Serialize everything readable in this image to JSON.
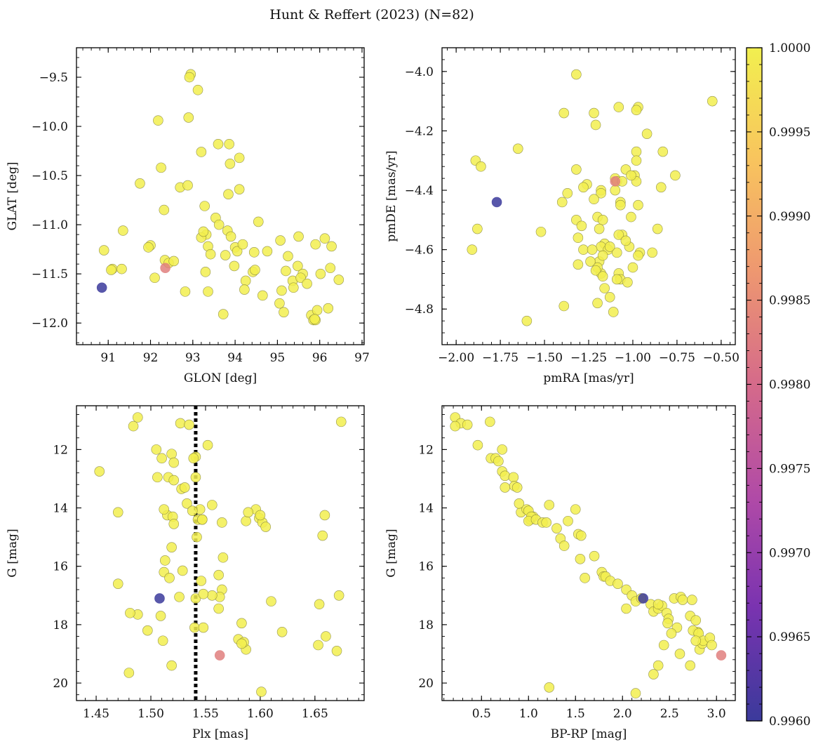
{
  "figure_title": "Hunt & Reffert (2023) (N=82)",
  "colorbar": {
    "min": 0.996,
    "max": 1.0,
    "ticks": [
      "0.9960",
      "0.9965",
      "0.9970",
      "0.9975",
      "0.9980",
      "0.9985",
      "0.9990",
      "0.9995",
      "1.0000"
    ],
    "tick_values": [
      0.996,
      0.9965,
      0.997,
      0.9975,
      0.998,
      0.9985,
      0.999,
      0.9995,
      1.0
    ],
    "colormap": "plasma",
    "colors": [
      "#3b3a9b",
      "#7a33b0",
      "#b04aa7",
      "#d56a8a",
      "#ee9870",
      "#f8c35e",
      "#f2ef4f"
    ]
  },
  "marker": {
    "face_alpha": 0.85,
    "edge_color": "#7a7a3a",
    "radius_hint": "medium"
  },
  "chart_data": [
    {
      "type": "scatter",
      "id": "glon-glat",
      "xlabel": "GLON [deg]",
      "ylabel": "GLAT [deg]",
      "xlim": [
        90.25,
        97.05
      ],
      "ylim": [
        -12.22,
        -9.2
      ],
      "xticks": [
        91,
        92,
        93,
        94,
        95,
        96,
        97
      ],
      "xtick_labels": [
        "91",
        "92",
        "93",
        "94",
        "95",
        "96",
        "97"
      ],
      "yticks": [
        -9.5,
        -10.0,
        -10.5,
        -11.0,
        -11.5,
        -12.0
      ],
      "ytick_labels": [
        "−9.5",
        "−10.0",
        "−10.5",
        "−11.0",
        "−11.5",
        "−12.0"
      ],
      "x": [
        92.95,
        92.92,
        93.12,
        92.9,
        92.18,
        93.2,
        93.6,
        93.86,
        93.88,
        94.1,
        93.84,
        92.25,
        91.75,
        92.32,
        92.7,
        92.88,
        93.28,
        93.54,
        94.1,
        93.82,
        93.9,
        94.55,
        93.32,
        93.2,
        91.35,
        93.36,
        94,
        95.07,
        95.5,
        95.9,
        96.12,
        96.28,
        92,
        91.95,
        93.42,
        94.05,
        94.76,
        93.77,
        94.45,
        94.42,
        93.98,
        90.9,
        91.1,
        91.07,
        91.32,
        92.34,
        95.2,
        95.48,
        95.6,
        94.25,
        93.3,
        92.1,
        95.36,
        95.55,
        94.22,
        95.1,
        96.25,
        96.45,
        92.82,
        93.36,
        95.38,
        94.65,
        93.72,
        95.15,
        95.8,
        96.2,
        95.94,
        95.85,
        95.9,
        95.88,
        92.43,
        92.55,
        94.47,
        93.25,
        94.18,
        95.25,
        95.7,
        96.02,
        93.62,
        95.05,
        90.85,
        92.35
      ],
      "y": [
        -9.47,
        -9.5,
        -9.63,
        -9.91,
        -9.94,
        -10.26,
        -10.18,
        -10.18,
        -10.38,
        -10.32,
        -10.69,
        -10.42,
        -10.58,
        -10.85,
        -10.62,
        -10.6,
        -10.81,
        -10.93,
        -10.64,
        -11.06,
        -11.12,
        -10.97,
        -11.1,
        -11.13,
        -11.06,
        -11.22,
        -11.23,
        -11.16,
        -11.12,
        -11.2,
        -11.14,
        -11.22,
        -11.21,
        -11.23,
        -11.3,
        -11.27,
        -11.27,
        -11.31,
        -11.28,
        -11.48,
        -11.42,
        -11.26,
        -11.45,
        -11.46,
        -11.45,
        -11.36,
        -11.47,
        -11.42,
        -11.5,
        -11.57,
        -11.48,
        -11.54,
        -11.57,
        -11.54,
        -11.66,
        -11.67,
        -11.44,
        -11.56,
        -11.68,
        -11.68,
        -11.64,
        -11.72,
        -11.91,
        -11.89,
        -11.92,
        -11.85,
        -11.87,
        -11.97,
        -11.97,
        -11.96,
        -11.39,
        -11.37,
        -11.46,
        -11.07,
        -11.2,
        -11.32,
        -11.6,
        -11.5,
        -11.0,
        -11.8,
        -11.64,
        -11.44
      ],
      "color_values": [
        1,
        1,
        1,
        1,
        1,
        1,
        1,
        1,
        1,
        1,
        1,
        1,
        1,
        1,
        1,
        1,
        1,
        1,
        1,
        1,
        1,
        1,
        1,
        1,
        1,
        1,
        1,
        1,
        1,
        1,
        1,
        1,
        1,
        1,
        1,
        1,
        1,
        1,
        1,
        1,
        1,
        1,
        1,
        1,
        1,
        1,
        1,
        1,
        1,
        1,
        1,
        1,
        1,
        1,
        1,
        1,
        1,
        1,
        1,
        1,
        1,
        1,
        1,
        1,
        1,
        1,
        1,
        1,
        1,
        1,
        1,
        1,
        1,
        1,
        1,
        1,
        1,
        1,
        1,
        1,
        0.996,
        0.9983
      ]
    },
    {
      "type": "scatter",
      "id": "pmra-pmde",
      "xlabel": "pmRA [mas/yr]",
      "ylabel": "pmDE [mas/yr]",
      "xlim": [
        -2.08,
        -0.42
      ],
      "ylim": [
        -4.92,
        -3.92
      ],
      "xticks": [
        -2.0,
        -1.75,
        -1.5,
        -1.25,
        -1.0,
        -0.75,
        -0.5
      ],
      "xtick_labels": [
        "−2.00",
        "−1.75",
        "−1.50",
        "−1.25",
        "−1.00",
        "−0.75",
        "−0.50"
      ],
      "yticks": [
        -4.0,
        -4.2,
        -4.4,
        -4.6,
        -4.8
      ],
      "ytick_labels": [
        "−4.0",
        "−4.2",
        "−4.4",
        "−4.6",
        "−4.8"
      ],
      "x": [
        -1.32,
        -0.55,
        -0.97,
        -1.08,
        -1.39,
        -0.98,
        -1.22,
        -0.92,
        -1.21,
        -1.65,
        -0.83,
        -0.98,
        -1.89,
        -1.86,
        -0.98,
        -1.04,
        -0.99,
        -1.32,
        -0.76,
        -1.1,
        -1.26,
        -1.09,
        -0.84,
        -0.98,
        -1.18,
        -1.37,
        -1.18,
        -1.1,
        -1.01,
        -1.06,
        -0.97,
        -1.88,
        -1.52,
        -1.2,
        -1.07,
        -1.28,
        -1.22,
        -1.32,
        -1.17,
        -1.4,
        -1.06,
        -1.19,
        -0.86,
        -1.01,
        -1.08,
        -1.31,
        -1.29,
        -1.28,
        -1.16,
        -0.89,
        -1.18,
        -1.07,
        -1.31,
        -1.19,
        -1.14,
        -1.91,
        -1.17,
        -1.18,
        -1.09,
        -1.02,
        -1.04,
        -1.13,
        -0.96,
        -1.23,
        -1.2,
        -1.21,
        -1.17,
        -1.08,
        -1.07,
        -1.03,
        -1.0,
        -1.16,
        -1.24,
        -0.97,
        -1.13,
        -1.11,
        -1.2,
        -1.39,
        -1.09,
        -1.6,
        -1.77,
        -1.1
      ],
      "y": [
        -4.01,
        -4.1,
        -4.12,
        -4.12,
        -4.14,
        -4.13,
        -4.14,
        -4.21,
        -4.18,
        -4.26,
        -4.27,
        -4.27,
        -4.3,
        -4.32,
        -4.3,
        -4.33,
        -4.35,
        -4.33,
        -4.35,
        -4.36,
        -4.38,
        -4.37,
        -4.39,
        -4.37,
        -4.4,
        -4.41,
        -4.41,
        -4.4,
        -4.35,
        -4.37,
        -4.45,
        -4.53,
        -4.54,
        -4.49,
        -4.44,
        -4.39,
        -4.43,
        -4.5,
        -4.5,
        -4.44,
        -4.55,
        -4.53,
        -4.53,
        -4.49,
        -4.55,
        -4.56,
        -4.52,
        -4.6,
        -4.58,
        -4.61,
        -4.59,
        -4.45,
        -4.65,
        -4.64,
        -4.6,
        -4.6,
        -4.62,
        -4.68,
        -4.61,
        -4.59,
        -4.57,
        -4.59,
        -4.61,
        -4.6,
        -4.66,
        -4.67,
        -4.69,
        -4.68,
        -4.7,
        -4.71,
        -4.66,
        -4.73,
        -4.64,
        -4.62,
        -4.76,
        -4.81,
        -4.78,
        -4.79,
        -4.7,
        -4.84,
        -4.44,
        -4.37
      ],
      "color_values": [
        1,
        1,
        1,
        1,
        1,
        1,
        1,
        1,
        1,
        1,
        1,
        1,
        1,
        1,
        1,
        1,
        1,
        1,
        1,
        1,
        1,
        1,
        1,
        1,
        1,
        1,
        1,
        1,
        1,
        1,
        1,
        1,
        1,
        1,
        1,
        1,
        1,
        1,
        1,
        1,
        1,
        1,
        1,
        1,
        1,
        1,
        1,
        1,
        1,
        1,
        1,
        1,
        1,
        1,
        1,
        1,
        1,
        1,
        1,
        1,
        1,
        1,
        1,
        1,
        1,
        1,
        1,
        1,
        1,
        1,
        1,
        1,
        1,
        1,
        1,
        1,
        1,
        1,
        1,
        1,
        0.996,
        0.9983
      ]
    },
    {
      "type": "scatter",
      "id": "plx-g",
      "xlabel": "Plx [mas]",
      "ylabel": "G [mag]",
      "xlim": [
        1.432,
        1.695
      ],
      "ylim": [
        20.6,
        10.5
      ],
      "invert_y": true,
      "xticks": [
        1.45,
        1.5,
        1.55,
        1.6,
        1.65
      ],
      "xtick_labels": [
        "1.45",
        "1.50",
        "1.55",
        "1.60",
        "1.65"
      ],
      "yticks": [
        12,
        14,
        16,
        18,
        20
      ],
      "ytick_labels": [
        "12",
        "14",
        "16",
        "18",
        "20"
      ],
      "vline": {
        "x": 1.541,
        "style": "dotted",
        "color": "#000000"
      },
      "x": [
        1.488,
        1.484,
        1.674,
        1.527,
        1.535,
        1.505,
        1.519,
        1.541,
        1.552,
        1.453,
        1.506,
        1.521,
        1.528,
        1.531,
        1.541,
        1.539,
        1.51,
        1.516,
        1.521,
        1.47,
        1.533,
        1.545,
        1.556,
        1.596,
        1.543,
        1.547,
        1.587,
        1.599,
        1.602,
        1.659,
        1.565,
        1.589,
        1.6,
        1.605,
        1.566,
        1.513,
        1.515,
        1.52,
        1.538,
        1.547,
        1.562,
        1.542,
        1.512,
        1.521,
        1.657,
        1.512,
        1.546,
        1.565,
        1.672,
        1.47,
        1.519,
        1.509,
        1.529,
        1.563,
        1.517,
        1.488,
        1.556,
        1.654,
        1.541,
        1.66,
        1.548,
        1.562,
        1.58,
        1.583,
        1.481,
        1.497,
        1.54,
        1.587,
        1.62,
        1.511,
        1.585,
        1.653,
        1.583,
        1.67,
        1.61,
        1.526,
        1.548,
        1.519,
        1.601,
        1.48,
        1.508,
        1.563
      ],
      "y": [
        10.9,
        11.2,
        11.05,
        11.1,
        11.15,
        12.0,
        12.15,
        12.25,
        11.85,
        12.75,
        12.95,
        12.45,
        13.35,
        13.3,
        12.95,
        12.3,
        12.3,
        12.95,
        13.05,
        14.15,
        13.85,
        14.05,
        13.9,
        14.05,
        14.4,
        14.4,
        14.45,
        14.35,
        14.5,
        14.25,
        14.5,
        14.15,
        14.25,
        14.65,
        15.7,
        15.8,
        14.25,
        14.3,
        14.1,
        14.4,
        16.3,
        15.0,
        14.05,
        14.55,
        14.95,
        16.2,
        16.5,
        16.8,
        17.0,
        16.6,
        15.35,
        17.7,
        16.15,
        17.05,
        16.4,
        17.65,
        17.0,
        17.3,
        17.1,
        18.4,
        16.95,
        17.45,
        18.5,
        17.95,
        17.6,
        18.2,
        18.1,
        18.85,
        18.25,
        18.55,
        18.6,
        18.7,
        18.65,
        18.9,
        17.2,
        17.05,
        18.1,
        19.4,
        20.3,
        19.65,
        17.1,
        19.05
      ],
      "color_values": [
        1,
        1,
        1,
        1,
        1,
        1,
        1,
        1,
        1,
        1,
        1,
        1,
        1,
        1,
        1,
        1,
        1,
        1,
        1,
        1,
        1,
        1,
        1,
        1,
        1,
        1,
        1,
        1,
        1,
        1,
        1,
        1,
        1,
        1,
        1,
        1,
        1,
        1,
        1,
        1,
        1,
        1,
        1,
        1,
        1,
        1,
        1,
        1,
        1,
        1,
        1,
        1,
        1,
        1,
        1,
        1,
        1,
        1,
        1,
        1,
        1,
        1,
        1,
        1,
        1,
        1,
        1,
        1,
        1,
        1,
        1,
        1,
        1,
        1,
        1,
        1,
        1,
        1,
        1,
        1,
        0.996,
        0.9983
      ]
    },
    {
      "type": "scatter",
      "id": "bprp-g",
      "xlabel": "BP-RP [mag]",
      "ylabel": "G [mag]",
      "xlim": [
        0.08,
        3.2
      ],
      "ylim": [
        20.6,
        10.5
      ],
      "invert_y": true,
      "xticks": [
        0.5,
        1.0,
        1.5,
        2.0,
        2.5,
        3.0
      ],
      "xtick_labels": [
        "0.5",
        "1.0",
        "1.5",
        "2.0",
        "2.5",
        "3.0"
      ],
      "yticks": [
        12,
        14,
        16,
        18,
        20
      ],
      "ytick_labels": [
        "12",
        "14",
        "16",
        "18",
        "20"
      ],
      "x": [
        0.22,
        0.28,
        0.35,
        0.22,
        0.59,
        0.46,
        0.6,
        0.65,
        0.72,
        0.68,
        0.72,
        0.75,
        0.75,
        0.84,
        0.85,
        0.88,
        0.92,
        0.9,
        0.98,
        1.0,
        1.02,
        1.05,
        1.03,
        1.0,
        1.08,
        1.15,
        1.19,
        1.22,
        1.3,
        1.34,
        1.38,
        1.5,
        1.42,
        1.55,
        1.53,
        1.56,
        1.6,
        1.7,
        1.78,
        1.8,
        1.82,
        1.87,
        1.95,
        2.04,
        2.1,
        2.14,
        2.2,
        2.04,
        2.3,
        2.33,
        2.38,
        2.42,
        2.47,
        2.49,
        2.38,
        2.55,
        2.62,
        2.64,
        2.74,
        2.72,
        2.78,
        2.8,
        2.75,
        2.81,
        2.82,
        2.85,
        2.86,
        2.93,
        2.95,
        2.72,
        2.78,
        2.61,
        2.58,
        2.52,
        2.48,
        2.44,
        2.38,
        2.33,
        2.14,
        1.22,
        2.22,
        3.05
      ],
      "y": [
        10.9,
        11.1,
        11.15,
        11.2,
        11.05,
        11.85,
        12.3,
        12.3,
        12.0,
        12.4,
        12.75,
        12.9,
        13.3,
        12.95,
        13.25,
        13.3,
        14.15,
        13.85,
        14.05,
        14.1,
        14.4,
        14.3,
        14.3,
        14.45,
        14.4,
        14.5,
        14.5,
        13.9,
        14.7,
        15.05,
        15.3,
        14.05,
        14.45,
        15.75,
        14.9,
        14.95,
        16.4,
        15.65,
        16.2,
        16.35,
        16.35,
        16.5,
        16.6,
        16.8,
        17.0,
        17.2,
        17.1,
        17.45,
        17.3,
        17.55,
        17.45,
        17.35,
        17.6,
        17.8,
        17.3,
        17.1,
        17.05,
        17.15,
        17.15,
        17.7,
        17.85,
        18.25,
        18.2,
        18.3,
        18.85,
        18.65,
        18.55,
        18.45,
        18.7,
        19.4,
        18.55,
        19.0,
        18.1,
        18.3,
        17.95,
        18.7,
        19.4,
        19.7,
        20.35,
        20.15,
        17.1,
        19.05
      ],
      "color_values": [
        1,
        1,
        1,
        1,
        1,
        1,
        1,
        1,
        1,
        1,
        1,
        1,
        1,
        1,
        1,
        1,
        1,
        1,
        1,
        1,
        1,
        1,
        1,
        1,
        1,
        1,
        1,
        1,
        1,
        1,
        1,
        1,
        1,
        1,
        1,
        1,
        1,
        1,
        1,
        1,
        1,
        1,
        1,
        1,
        1,
        1,
        1,
        1,
        1,
        1,
        1,
        1,
        1,
        1,
        1,
        1,
        1,
        1,
        1,
        1,
        1,
        1,
        1,
        1,
        1,
        1,
        1,
        1,
        1,
        1,
        1,
        1,
        1,
        1,
        1,
        1,
        1,
        1,
        1,
        1,
        0.996,
        0.9983
      ]
    }
  ]
}
